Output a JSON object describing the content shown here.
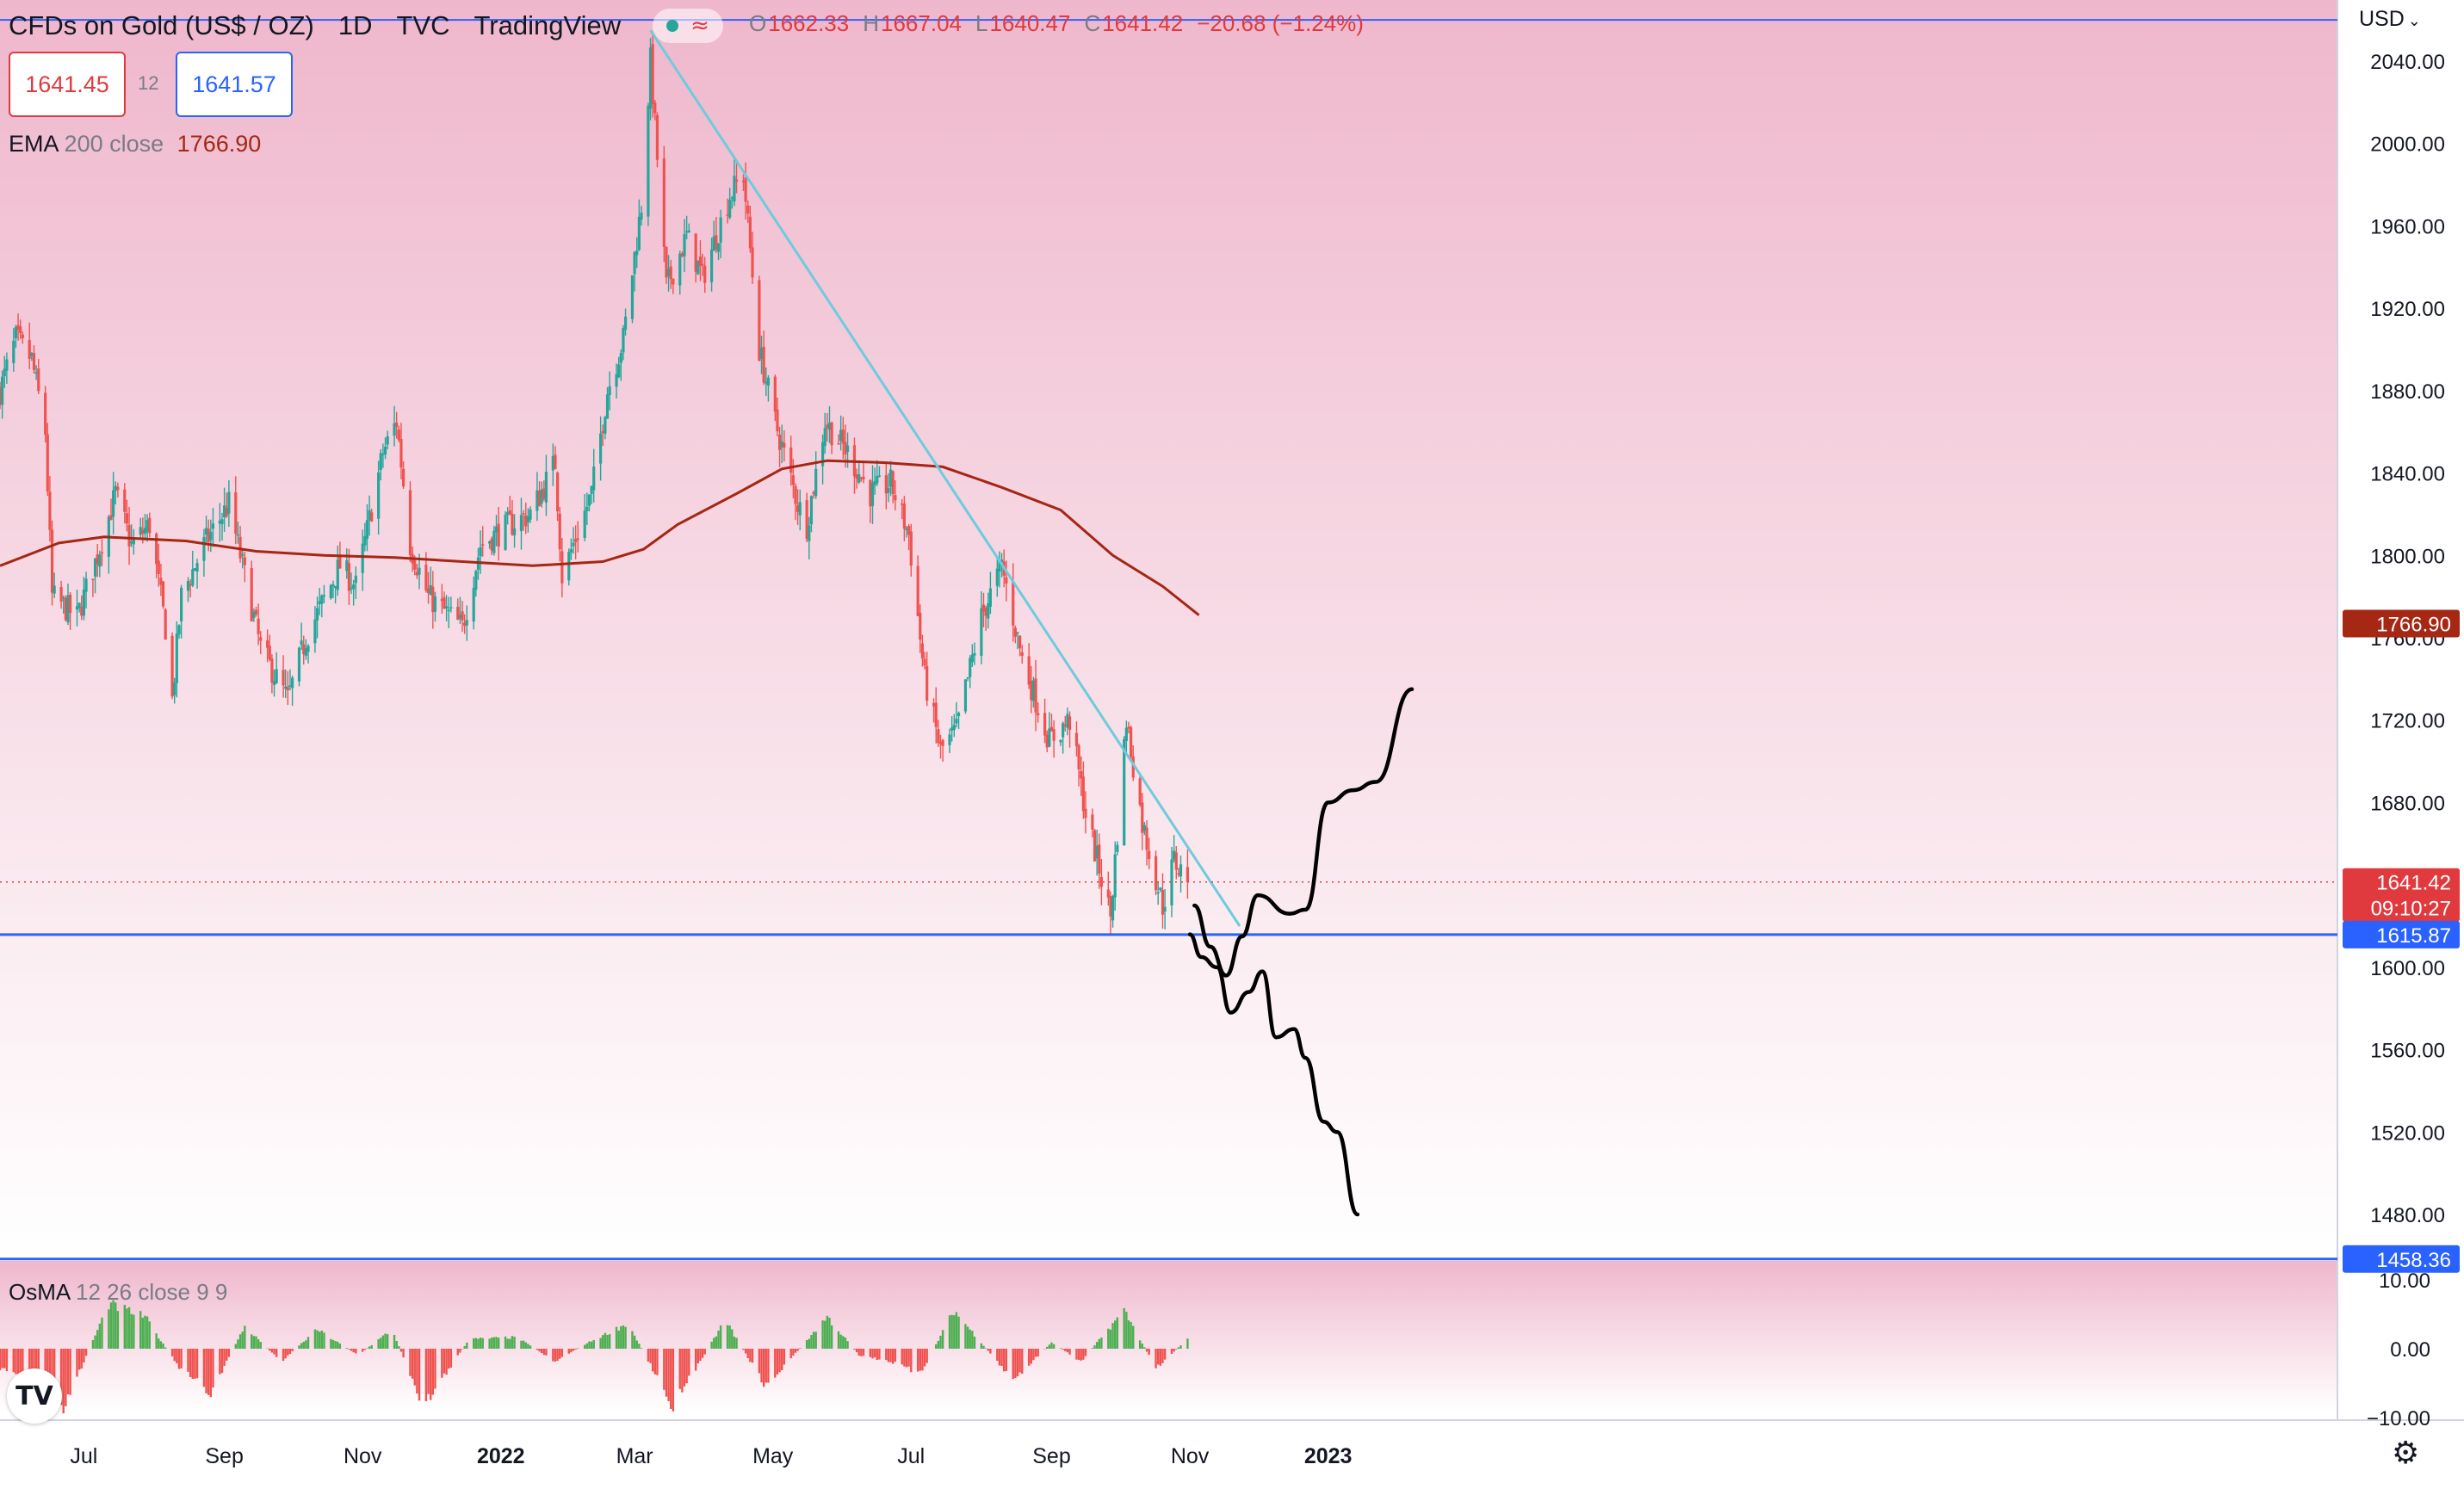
{
  "header": {
    "symbol": "CFDs on Gold (US$ / OZ)",
    "interval": "1D",
    "source": "TVC",
    "platform": "TradingView",
    "ohlc": {
      "o_label": "O",
      "o": "1662.33",
      "h_label": "H",
      "h": "1667.04",
      "l_label": "L",
      "l": "1640.47",
      "c_label": "C",
      "c": "1641.42",
      "change": "−20.68 (−1.24%)"
    }
  },
  "order": {
    "sell": "1641.45",
    "spread": "12",
    "buy": "1641.57"
  },
  "currency": "USD",
  "indicators": {
    "ema": {
      "name": "EMA",
      "params": "200 close",
      "value": "1766.90"
    },
    "osma": {
      "name": "OsMA",
      "params": "12 26 close 9 9"
    }
  },
  "colors": {
    "up": "#26a69a",
    "down": "#ef5350",
    "ema": "#a52714",
    "trendline": "#6ecbdd",
    "support": "#2962ff",
    "projection": "#000000",
    "last_price": "#e03a3e",
    "osma_up": "#4caf50",
    "osma_down": "#ef5350",
    "bg_top": "#efb7cc",
    "bg_bottom": "#ffffff"
  },
  "chart_data": {
    "type": "candlestick",
    "title": "CFDs on Gold (US$ / OZ)",
    "ylim": [
      1458,
      2060
    ],
    "yticks": [
      2040,
      2000,
      1960,
      1920,
      1880,
      1840,
      1800,
      1760,
      1720,
      1680,
      1600,
      1560,
      1520,
      1480
    ],
    "ytick_labels": [
      "2040.00",
      "2000.00",
      "1960.00",
      "1920.00",
      "1880.00",
      "1840.00",
      "1800.00",
      "1760.00",
      "1720.00",
      "1680.00",
      "1600.00",
      "1560.00",
      "1520.00",
      "1480.00"
    ],
    "x_labels": [
      {
        "date": "2021-07-01",
        "label": "Jul"
      },
      {
        "date": "2021-09-01",
        "label": "Sep"
      },
      {
        "date": "2021-11-01",
        "label": "Nov"
      },
      {
        "date": "2022-01-01",
        "label": "2022"
      },
      {
        "date": "2022-03-01",
        "label": "Mar"
      },
      {
        "date": "2022-05-01",
        "label": "May"
      },
      {
        "date": "2022-07-01",
        "label": "Jul"
      },
      {
        "date": "2022-09-01",
        "label": "Sep"
      },
      {
        "date": "2022-11-01",
        "label": "Nov"
      },
      {
        "date": "2023-01-01",
        "label": "2023"
      }
    ],
    "x_bold_labels": [
      "2022",
      "2023"
    ],
    "price_path": [
      [
        "2021-05-25",
        1880
      ],
      [
        "2021-06-01",
        1905
      ],
      [
        "2021-06-08",
        1895
      ],
      [
        "2021-06-14",
        1860
      ],
      [
        "2021-06-17",
        1780
      ],
      [
        "2021-06-28",
        1770
      ],
      [
        "2021-07-07",
        1800
      ],
      [
        "2021-07-15",
        1830
      ],
      [
        "2021-07-22",
        1805
      ],
      [
        "2021-07-30",
        1815
      ],
      [
        "2021-08-06",
        1765
      ],
      [
        "2021-08-09",
        1730
      ],
      [
        "2021-08-13",
        1780
      ],
      [
        "2021-08-23",
        1805
      ],
      [
        "2021-09-03",
        1825
      ],
      [
        "2021-09-10",
        1790
      ],
      [
        "2021-09-17",
        1755
      ],
      [
        "2021-09-29",
        1730
      ],
      [
        "2021-10-07",
        1760
      ],
      [
        "2021-10-22",
        1795
      ],
      [
        "2021-10-29",
        1785
      ],
      [
        "2021-11-10",
        1850
      ],
      [
        "2021-11-16",
        1865
      ],
      [
        "2021-11-22",
        1805
      ],
      [
        "2021-11-30",
        1780
      ],
      [
        "2021-12-15",
        1765
      ],
      [
        "2021-12-23",
        1805
      ],
      [
        "2022-01-05",
        1815
      ],
      [
        "2022-01-14",
        1820
      ],
      [
        "2022-01-25",
        1845
      ],
      [
        "2022-01-28",
        1790
      ],
      [
        "2022-02-10",
        1830
      ],
      [
        "2022-02-17",
        1880
      ],
      [
        "2022-02-24",
        1905
      ],
      [
        "2022-03-04",
        1970
      ],
      [
        "2022-03-08",
        2040
      ],
      [
        "2022-03-15",
        1930
      ],
      [
        "2022-03-24",
        1955
      ],
      [
        "2022-03-31",
        1935
      ],
      [
        "2022-04-12",
        1975
      ],
      [
        "2022-04-18",
        1985
      ],
      [
        "2022-04-25",
        1900
      ],
      [
        "2022-05-02",
        1865
      ],
      [
        "2022-05-12",
        1825
      ],
      [
        "2022-05-16",
        1815
      ],
      [
        "2022-05-24",
        1865
      ],
      [
        "2022-06-03",
        1850
      ],
      [
        "2022-06-13",
        1830
      ],
      [
        "2022-06-22",
        1835
      ],
      [
        "2022-06-30",
        1810
      ],
      [
        "2022-07-07",
        1740
      ],
      [
        "2022-07-14",
        1705
      ],
      [
        "2022-07-21",
        1715
      ],
      [
        "2022-08-01",
        1770
      ],
      [
        "2022-08-10",
        1795
      ],
      [
        "2022-08-19",
        1750
      ],
      [
        "2022-08-31",
        1710
      ],
      [
        "2022-09-09",
        1720
      ],
      [
        "2022-09-16",
        1675
      ],
      [
        "2022-09-27",
        1625
      ],
      [
        "2022-10-04",
        1720
      ],
      [
        "2022-10-11",
        1670
      ],
      [
        "2022-10-20",
        1630
      ],
      [
        "2022-10-25",
        1652
      ],
      [
        "2022-10-31",
        1641.42
      ]
    ],
    "candle_range": {
      "start": "2021-05-25",
      "end": "2022-10-31"
    },
    "ema200": [
      [
        "2021-05-25",
        1795
      ],
      [
        "2021-06-20",
        1806
      ],
      [
        "2021-07-10",
        1809
      ],
      [
        "2021-08-15",
        1807
      ],
      [
        "2021-09-15",
        1802
      ],
      [
        "2021-10-15",
        1800
      ],
      [
        "2021-11-15",
        1799
      ],
      [
        "2021-12-15",
        1797
      ],
      [
        "2022-01-15",
        1795
      ],
      [
        "2022-02-15",
        1797
      ],
      [
        "2022-03-05",
        1803
      ],
      [
        "2022-03-20",
        1815
      ],
      [
        "2022-04-15",
        1830
      ],
      [
        "2022-05-05",
        1842
      ],
      [
        "2022-05-25",
        1846
      ],
      [
        "2022-06-20",
        1845
      ],
      [
        "2022-07-15",
        1843
      ],
      [
        "2022-08-10",
        1833
      ],
      [
        "2022-09-05",
        1822
      ],
      [
        "2022-09-28",
        1800
      ],
      [
        "2022-10-20",
        1785
      ],
      [
        "2022-11-05",
        1771
      ]
    ],
    "trendline": [
      [
        "2022-03-08",
        2055
      ],
      [
        "2022-11-23",
        1620
      ]
    ],
    "support": {
      "value": 1615.87,
      "label": "1615.87"
    },
    "lower_level": {
      "value": 1458.36,
      "label": "1458.36"
    },
    "top_level": {
      "value": 2060
    },
    "last_price": {
      "value": 1641.42,
      "label": "1641.42",
      "countdown": "09:10:27"
    },
    "ema_tag": {
      "value": 1766.9,
      "label": "1766.90"
    },
    "projection_up": [
      [
        "2022-11-03",
        1630
      ],
      [
        "2022-11-10",
        1610
      ],
      [
        "2022-11-17",
        1596
      ],
      [
        "2022-11-24",
        1615
      ],
      [
        "2022-12-01",
        1635
      ],
      [
        "2022-12-15",
        1626
      ],
      [
        "2022-12-22",
        1628
      ],
      [
        "2023-01-01",
        1680
      ],
      [
        "2023-01-12",
        1686
      ],
      [
        "2023-01-22",
        1690
      ],
      [
        "2023-02-07",
        1735
      ]
    ],
    "projection_down": [
      [
        "2022-11-01",
        1616
      ],
      [
        "2022-11-06",
        1605
      ],
      [
        "2022-11-13",
        1600
      ],
      [
        "2022-11-19",
        1578
      ],
      [
        "2022-11-27",
        1588
      ],
      [
        "2022-12-03",
        1598
      ],
      [
        "2022-12-09",
        1566
      ],
      [
        "2022-12-17",
        1570
      ],
      [
        "2022-12-22",
        1556
      ],
      [
        "2022-12-30",
        1525
      ],
      [
        "2023-01-05",
        1520
      ],
      [
        "2023-01-14",
        1480
      ]
    ],
    "projection_start": [
      [
        "2022-11-02",
        1637
      ],
      [
        "2022-11-09",
        1630
      ],
      [
        "2022-11-17",
        1605
      ]
    ],
    "osma": {
      "ylim": [
        -13,
        12
      ],
      "yticks": [
        10,
        0,
        -10
      ],
      "ytick_labels": [
        "10.00",
        "0.00",
        "−10.00"
      ],
      "waves": [
        [
          "2021-05-25",
          -3
        ],
        [
          "2021-06-05",
          -5
        ],
        [
          "2021-06-20",
          -11
        ],
        [
          "2021-07-12",
          7
        ],
        [
          "2021-07-28",
          5
        ],
        [
          "2021-08-12",
          -3
        ],
        [
          "2021-08-26",
          -7
        ],
        [
          "2021-09-10",
          3.5
        ],
        [
          "2021-09-26",
          -2
        ],
        [
          "2021-10-12",
          3
        ],
        [
          "2021-10-30",
          -1
        ],
        [
          "2021-11-14",
          3
        ],
        [
          "2021-11-28",
          -9
        ],
        [
          "2021-12-18",
          1.5
        ],
        [
          "2022-01-08",
          1.8
        ],
        [
          "2022-01-25",
          -2
        ],
        [
          "2022-02-06",
          0.5
        ],
        [
          "2022-02-26",
          4
        ],
        [
          "2022-03-18",
          -9
        ],
        [
          "2022-04-10",
          4.5
        ],
        [
          "2022-04-28",
          -6
        ],
        [
          "2022-05-25",
          5
        ],
        [
          "2022-06-08",
          -1
        ],
        [
          "2022-06-22",
          -2
        ],
        [
          "2022-07-05",
          -4
        ],
        [
          "2022-07-20",
          6
        ],
        [
          "2022-08-15",
          -5
        ],
        [
          "2022-09-01",
          1
        ],
        [
          "2022-09-14",
          -2
        ],
        [
          "2022-10-03",
          6
        ],
        [
          "2022-10-17",
          -3
        ],
        [
          "2022-10-31",
          1.5
        ]
      ]
    }
  }
}
